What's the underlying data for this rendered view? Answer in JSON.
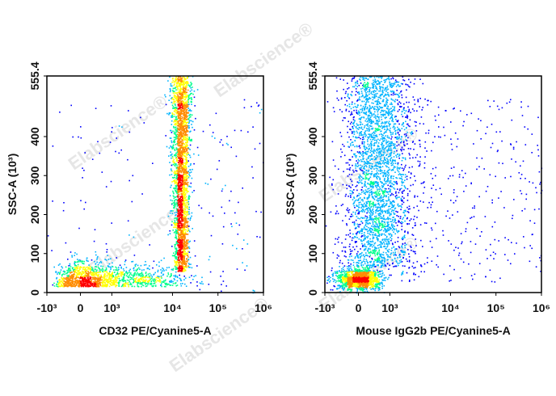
{
  "watermark": "Elabscience®",
  "chart_data": [
    {
      "type": "scatter",
      "density_colormap": [
        "#0000ff",
        "#00b4ff",
        "#00ff8c",
        "#ffff00",
        "#ff8c00",
        "#ff0000"
      ],
      "x_scale": "biexponential",
      "y_scale": "linear",
      "xlabel": "CD32 PE/Cyanine5-A",
      "ylabel": "SSC-A (10³)",
      "xticks": [
        "-10³",
        "0",
        "10³",
        "10⁴",
        "10⁵",
        "10⁶"
      ],
      "yticks": [
        "0",
        "100",
        "200",
        "300",
        "400",
        "555.4"
      ],
      "xlim": [
        -1000,
        1000000
      ],
      "ylim": [
        0,
        555.4
      ],
      "populations": [
        {
          "name": "",
          "x_center": 0,
          "y_center": 30,
          "x_spread": "-10³ to 8×10³",
          "y_spread": 20,
          "relative_size": 0.35
        },
        {
          "name": "",
          "x_center": 15000,
          "y_center": 280,
          "x_spread": "7×10³ to 2.5×10⁴",
          "y_spread": 160,
          "relative_size": 0.65
        }
      ]
    },
    {
      "type": "scatter",
      "density_colormap": [
        "#0000ff",
        "#00b4ff",
        "#00ff8c",
        "#ffff00",
        "#ff8c00",
        "#ff0000"
      ],
      "x_scale": "biexponential",
      "y_scale": "linear",
      "xlabel": "Mouse IgG2b PE/Cyanine5-A",
      "ylabel": "SSC-A (10³)",
      "xticks": [
        "-10³",
        "0",
        "10³",
        "10⁴",
        "10⁵",
        "10⁶"
      ],
      "yticks": [
        "0",
        "100",
        "200",
        "300",
        "400",
        "555.4"
      ],
      "xlim": [
        -1000,
        1000000
      ],
      "ylim": [
        0,
        555.4
      ],
      "populations": [
        {
          "name": "",
          "x_center": 0,
          "y_center": 35,
          "x_spread": "-10³ to 10³",
          "y_spread": 20,
          "relative_size": 0.3
        },
        {
          "name": "",
          "x_center": 500,
          "y_center": 300,
          "x_spread": "-500 to 3×10³",
          "y_spread": 140,
          "relative_size": 0.7
        }
      ]
    }
  ]
}
